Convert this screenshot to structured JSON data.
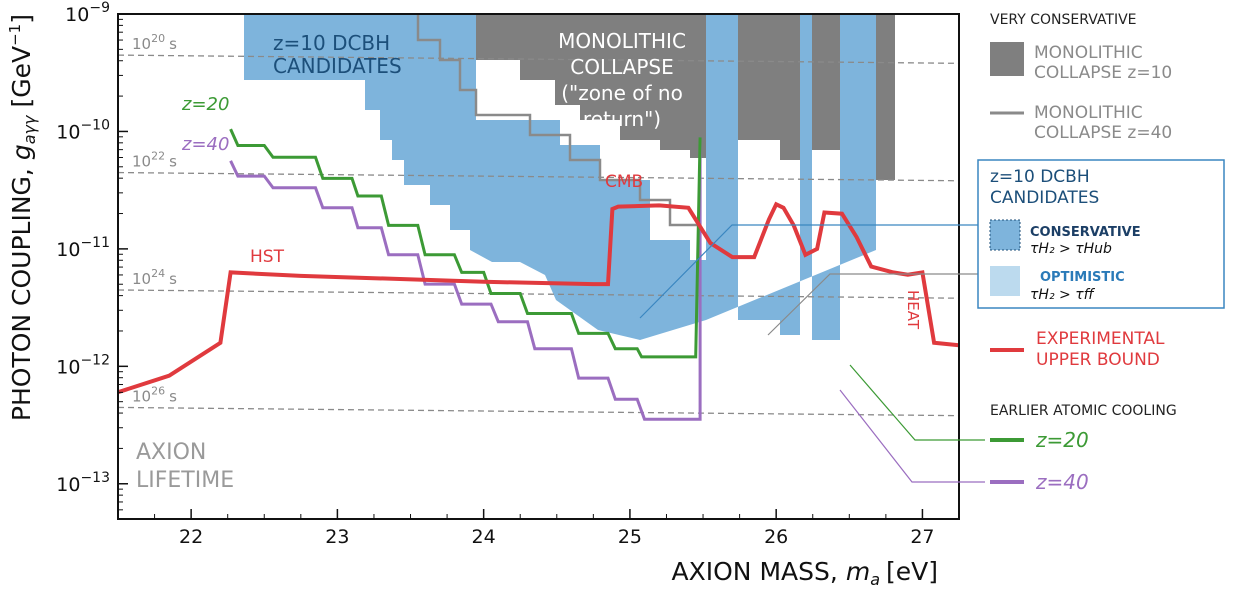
{
  "chart_data": {
    "type": "area",
    "xlabel": "AXION MASS,",
    "xlabel_symbol": "m",
    "xlabel_sub": "a",
    "xlabel_unit": "[eV]",
    "ylabel": "PHOTON COUPLING,",
    "ylabel_symbol": "g",
    "ylabel_sub": "aγγ",
    "ylabel_unit": "[GeV",
    "ylabel_unit_exp": "−1",
    "ylabel_unit_close": "]",
    "xlim": [
      21.5,
      27.25
    ],
    "ylim_log10": [
      -13.3,
      -9
    ],
    "x_ticks": [
      22,
      23,
      24,
      25,
      26,
      27
    ],
    "y_ticks": [
      {
        "base": "10",
        "exp": "−9",
        "log": -9
      },
      {
        "base": "10",
        "exp": "−10",
        "log": -10
      },
      {
        "base": "10",
        "exp": "−11",
        "log": -11
      },
      {
        "base": "10",
        "exp": "−12",
        "log": -12
      },
      {
        "base": "10",
        "exp": "−13",
        "log": -13
      }
    ],
    "lifetime_lines": [
      {
        "base": "10",
        "exp": "20",
        "unit": "s",
        "y_at_x0": -9.35,
        "y_at_x1": -9.42
      },
      {
        "base": "10",
        "exp": "22",
        "unit": "s",
        "y_at_x0": -10.35,
        "y_at_x1": -10.42
      },
      {
        "base": "10",
        "exp": "24",
        "unit": "s",
        "y_at_x0": -11.35,
        "y_at_x1": -11.42
      },
      {
        "base": "10",
        "exp": "26",
        "unit": "s",
        "y_at_x0": -12.35,
        "y_at_x1": -12.42
      }
    ],
    "series": [
      {
        "name": "EXPERIMENTAL UPPER BOUND",
        "color": "#e03a3e",
        "x": [
          21.5,
          21.85,
          22.2,
          22.27,
          22.75,
          23.25,
          24.0,
          24.75,
          24.85,
          24.88,
          24.92,
          25.2,
          25.4,
          25.55,
          25.7,
          25.85,
          25.95,
          26.0,
          26.05,
          26.12,
          26.2,
          26.28,
          26.33,
          26.45,
          26.55,
          26.65,
          26.8,
          26.9,
          27.0,
          27.08,
          27.25
        ],
        "y": [
          -12.22,
          -12.08,
          -11.8,
          -11.2,
          -11.23,
          -11.25,
          -11.28,
          -11.3,
          -11.3,
          -10.66,
          -10.64,
          -10.63,
          -10.65,
          -10.95,
          -11.07,
          -11.07,
          -10.75,
          -10.62,
          -10.65,
          -10.8,
          -11.05,
          -11.0,
          -10.69,
          -10.7,
          -10.9,
          -11.15,
          -11.2,
          -11.22,
          -11.2,
          -11.8,
          -11.82
        ]
      },
      {
        "name": "z=20",
        "color": "#3c9a35",
        "x": [
          22.27,
          22.32,
          22.5,
          22.56,
          22.85,
          22.9,
          23.1,
          23.14,
          23.3,
          23.35,
          23.55,
          23.6,
          23.8,
          23.85,
          24.0,
          24.05,
          24.25,
          24.3,
          24.6,
          24.65,
          24.85,
          24.9,
          25.05,
          25.08,
          25.3,
          25.35,
          25.45,
          25.48
        ],
        "y": [
          -9.98,
          -10.12,
          -10.12,
          -10.22,
          -10.22,
          -10.4,
          -10.4,
          -10.55,
          -10.55,
          -10.8,
          -10.8,
          -11.05,
          -11.05,
          -11.2,
          -11.2,
          -11.38,
          -11.38,
          -11.55,
          -11.55,
          -11.72,
          -11.72,
          -11.85,
          -11.85,
          -11.92,
          -11.92,
          -11.92,
          -11.92,
          -10.05
        ]
      },
      {
        "name": "z=40",
        "color": "#9b6ec0",
        "x": [
          22.27,
          22.32,
          22.5,
          22.56,
          22.85,
          22.9,
          23.1,
          23.14,
          23.3,
          23.35,
          23.55,
          23.6,
          23.8,
          23.85,
          24.05,
          24.1,
          24.3,
          24.35,
          24.6,
          24.65,
          24.85,
          24.9,
          25.05,
          25.1,
          25.3,
          25.48,
          25.48
        ],
        "y": [
          -10.25,
          -10.38,
          -10.38,
          -10.48,
          -10.48,
          -10.65,
          -10.65,
          -10.82,
          -10.82,
          -11.05,
          -11.05,
          -11.3,
          -11.3,
          -11.47,
          -11.47,
          -11.62,
          -11.62,
          -11.85,
          -11.85,
          -12.1,
          -12.1,
          -12.28,
          -12.28,
          -12.45,
          -12.45,
          -12.45,
          -10.05
        ]
      }
    ],
    "annotations": {
      "hst": "HST",
      "cmb": "CMB",
      "heat": "HEAT",
      "candidates_1": "z=10 DCBH",
      "candidates_2": "CANDIDATES",
      "monolithic_1": "MONOLITHIC",
      "monolithic_2": "COLLAPSE",
      "monolithic_3": "(\"zone of no",
      "monolithic_4": "return\")",
      "z20": "z=20",
      "z40": "z=40",
      "lifetime_1": "AXION",
      "lifetime_2": "LIFETIME"
    },
    "colors": {
      "conservative": "#7eb4dc",
      "optimistic": "#bcdaee",
      "monolithic": "#808080",
      "grey_line": "#8a8a8a",
      "experimental": "#e03a3e",
      "z20": "#3c9a35",
      "z40": "#9b6ec0"
    }
  },
  "legend": {
    "very_conservative_title": "VERY CONSERVATIVE",
    "monolithic_z10_line1": "MONOLITHIC",
    "monolithic_z10_line2": "COLLAPSE z=10",
    "monolithic_z40_line1": "MONOLITHIC",
    "monolithic_z40_line2": "COLLAPSE z=40",
    "dcbh_box_title1": "z=10 DCBH",
    "dcbh_box_title2": "CANDIDATES",
    "conservative_label": "CONSERVATIVE",
    "conservative_cond": "τH₂ > τHub",
    "optimistic_label": "OPTIMISTIC",
    "optimistic_cond": "τH₂ > τff",
    "experimental_line1": "EXPERIMENTAL",
    "experimental_line2": "UPPER BOUND",
    "earlier_title": "EARLIER ATOMIC COOLING",
    "z20_label": "z=20",
    "z40_label": "z=40"
  }
}
